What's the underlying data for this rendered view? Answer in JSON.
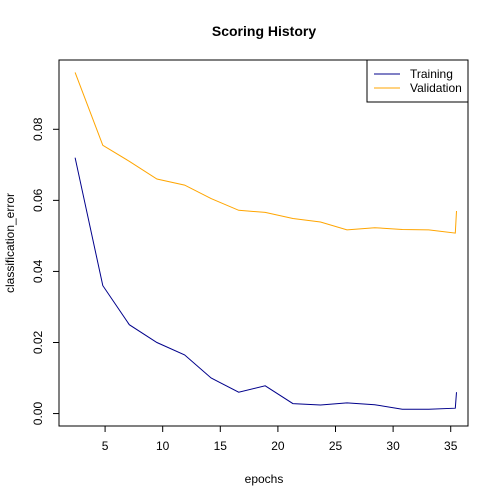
{
  "chart_data": {
    "type": "line",
    "title": "Scoring History",
    "xlabel": "epochs",
    "ylabel": "classification_error",
    "xlim": [
      1.0,
      36.5
    ],
    "ylim": [
      -0.0035,
      0.0995
    ],
    "xticks": [
      5,
      10,
      15,
      20,
      25,
      30,
      35
    ],
    "yticks": [
      0.0,
      0.02,
      0.04,
      0.06,
      0.08
    ],
    "ytick_labels": [
      "0.00",
      "0.02",
      "0.04",
      "0.06",
      "0.08"
    ],
    "grid": false,
    "legend_position": "top-right",
    "series": [
      {
        "name": "Training",
        "color": "#00008b",
        "x": [
          2.4,
          4.8,
          7.1,
          9.5,
          11.9,
          14.2,
          16.6,
          18.9,
          21.3,
          23.7,
          26.0,
          28.4,
          30.8,
          33.1,
          35.4,
          35.5
        ],
        "y": [
          0.072,
          0.036,
          0.025,
          0.02,
          0.0165,
          0.01,
          0.006,
          0.0078,
          0.0028,
          0.0024,
          0.003,
          0.0025,
          0.0012,
          0.0012,
          0.0015,
          0.006
        ]
      },
      {
        "name": "Validation",
        "color": "#ffa500",
        "x": [
          2.4,
          4.8,
          7.1,
          9.5,
          11.9,
          14.2,
          16.6,
          18.9,
          21.3,
          23.7,
          26.0,
          28.4,
          30.8,
          33.1,
          35.4,
          35.5
        ],
        "y": [
          0.096,
          0.0755,
          0.071,
          0.066,
          0.0643,
          0.0605,
          0.0572,
          0.0566,
          0.0549,
          0.0539,
          0.0517,
          0.0523,
          0.0518,
          0.0517,
          0.0508,
          0.057
        ]
      }
    ]
  }
}
